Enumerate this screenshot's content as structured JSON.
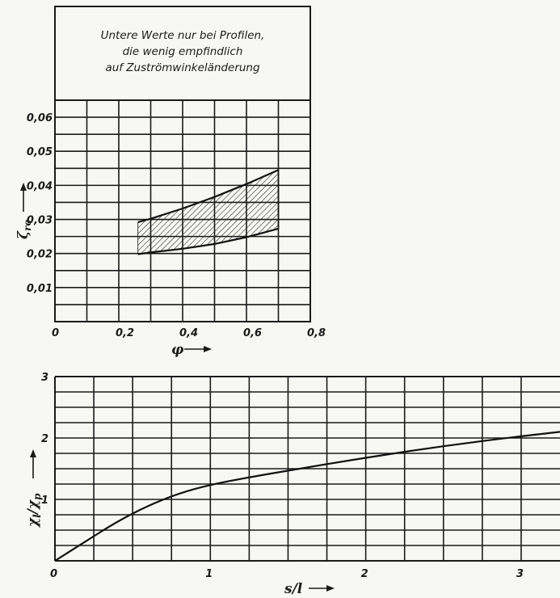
{
  "chart_data": [
    {
      "type": "area",
      "note": [
        "Untere Werte nur bei Profilen,",
        "die wenig empfindlich",
        "auf Zuströmwinkeländerung"
      ],
      "xlabel": "φ",
      "ylabel": "ζ",
      "ylabel_subscript": "ro",
      "xlim": [
        0,
        0.8
      ],
      "ylim": [
        0,
        0.065
      ],
      "x_ticks": [
        "0",
        "0,2",
        "0,4",
        "0,6",
        "0,8"
      ],
      "y_ticks": [
        "0,01",
        "0,02",
        "0,03",
        "0,04",
        "0,05",
        "0,06"
      ],
      "grid": true,
      "series": [
        {
          "x": [
            0.26,
            0.3,
            0.4,
            0.5,
            0.6,
            0.7
          ],
          "upper": [
            0.0292,
            0.0302,
            0.0332,
            0.0366,
            0.0404,
            0.0445
          ],
          "lower": [
            0.0198,
            0.0203,
            0.0214,
            0.0228,
            0.0248,
            0.0273
          ]
        }
      ]
    },
    {
      "type": "line",
      "xlabel": "s/l",
      "ylabel": "χ",
      "ylabel_subscript": "l",
      "ylabel_denominator": "χ",
      "ylabel_denominator_subscript": "p",
      "xlim": [
        0,
        3.25
      ],
      "ylim": [
        0,
        3
      ],
      "x_ticks": [
        "0",
        "1",
        "2",
        "3"
      ],
      "y_ticks": [
        "1",
        "2",
        "3"
      ],
      "grid": true,
      "series": [
        {
          "x": [
            0,
            0.2,
            0.4,
            0.6,
            0.8,
            1.0,
            1.25,
            1.5,
            2.0,
            2.5,
            3.0,
            3.25
          ],
          "y": [
            0,
            0.32,
            0.64,
            0.9,
            1.1,
            1.24,
            1.36,
            1.47,
            1.68,
            1.87,
            2.03,
            2.1
          ]
        }
      ]
    }
  ]
}
